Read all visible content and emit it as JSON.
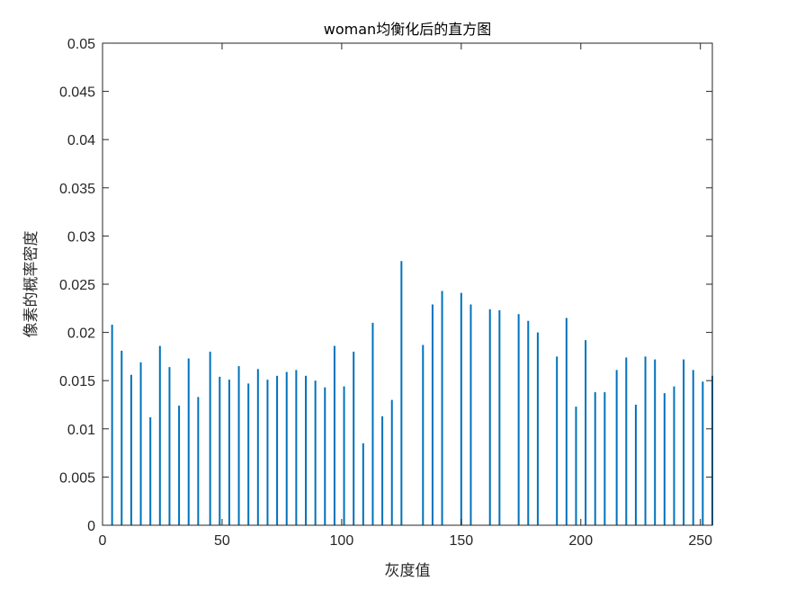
{
  "chart_data": {
    "type": "bar",
    "title": "woman均衡化后的直方图",
    "xlabel": "灰度值",
    "ylabel": "像素的概率密度",
    "xlim": [
      0,
      255
    ],
    "ylim": [
      0,
      0.05
    ],
    "x_ticks": [
      "0",
      "50",
      "100",
      "150",
      "200",
      "250"
    ],
    "y_ticks": [
      "0",
      "0.005",
      "0.01",
      "0.015",
      "0.02",
      "0.025",
      "0.03",
      "0.035",
      "0.04",
      "0.045",
      "0.05"
    ],
    "bar_color": "#0072BD",
    "grid": false,
    "x": [
      4,
      8,
      12,
      16,
      20,
      24,
      28,
      32,
      36,
      40,
      45,
      49,
      53,
      57,
      61,
      65,
      69,
      73,
      77,
      81,
      85,
      89,
      93,
      97,
      101,
      105,
      109,
      113,
      117,
      121,
      125,
      134,
      138,
      142,
      150,
      154,
      162,
      166,
      174,
      178,
      182,
      190,
      194,
      198,
      202,
      206,
      210,
      215,
      219,
      223,
      227,
      231,
      235,
      239,
      243,
      247,
      251,
      255
    ],
    "values": [
      0.0208,
      0.0181,
      0.0156,
      0.0169,
      0.0112,
      0.0186,
      0.0164,
      0.0124,
      0.0173,
      0.0133,
      0.018,
      0.0154,
      0.0151,
      0.0165,
      0.0147,
      0.0162,
      0.0151,
      0.0155,
      0.0159,
      0.0161,
      0.0155,
      0.015,
      0.0143,
      0.0186,
      0.0144,
      0.018,
      0.0085,
      0.021,
      0.0113,
      0.013,
      0.0274,
      0.0187,
      0.0229,
      0.0243,
      0.0241,
      0.0229,
      0.0224,
      0.0223,
      0.0219,
      0.0212,
      0.02,
      0.0175,
      0.0215,
      0.0123,
      0.0192,
      0.0138,
      0.0138,
      0.0161,
      0.0174,
      0.0125,
      0.0175,
      0.0172,
      0.0137,
      0.0144,
      0.0172,
      0.0161,
      0.0149,
      0.0155
    ]
  }
}
